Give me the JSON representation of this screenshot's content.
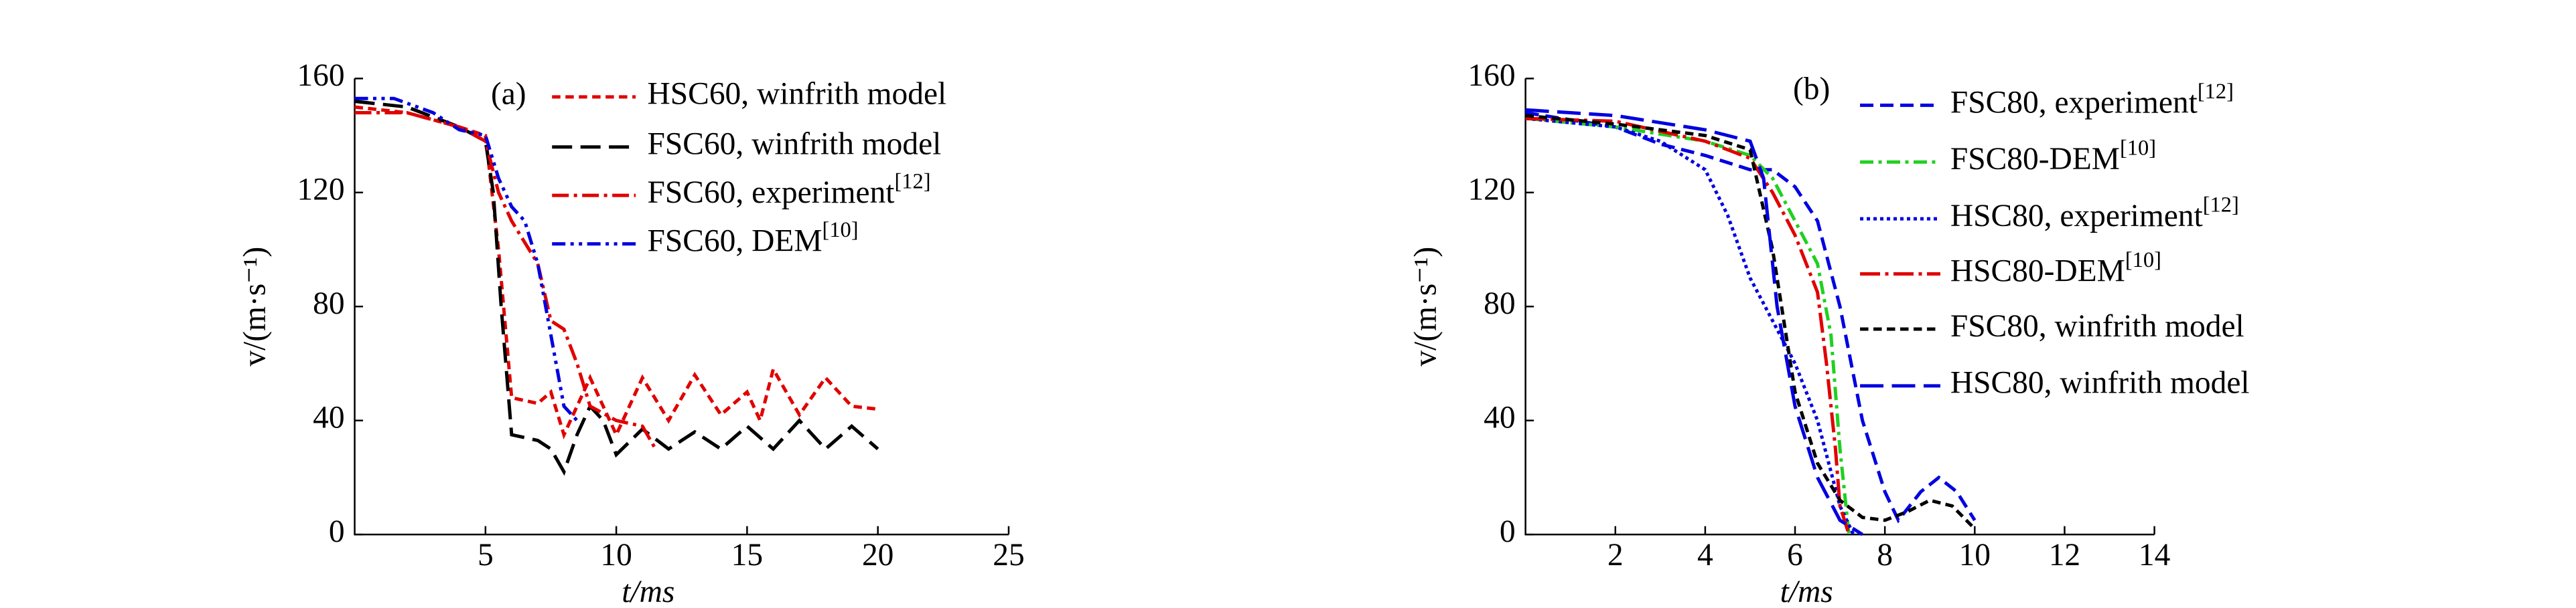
{
  "chart_data": [
    {
      "type": "line",
      "annotation": "(a)",
      "xlabel": "t/ms",
      "ylabel": "v/(m·s⁻¹)",
      "xlim": [
        0,
        25
      ],
      "xticks": [
        5,
        10,
        15,
        20,
        25
      ],
      "ylim": [
        0,
        160
      ],
      "yticks": [
        0,
        40,
        80,
        120,
        160
      ],
      "series": [
        {
          "name": "HSC60, winfrith model",
          "color": "#e00000",
          "dash": "5,3",
          "x": [
            0,
            2,
            4,
            5,
            5.5,
            6,
            7,
            7.5,
            8,
            9,
            10,
            11,
            12,
            13,
            14,
            15,
            15.5,
            16,
            17,
            18,
            19,
            20
          ],
          "values": [
            150,
            148,
            143,
            140,
            100,
            48,
            46,
            50,
            35,
            55,
            35,
            55,
            40,
            56,
            42,
            50,
            40,
            58,
            42,
            55,
            45,
            44
          ]
        },
        {
          "name": "FSC60, winfrith model",
          "color": "#000000",
          "dash": "12,5",
          "x": [
            0,
            2,
            4,
            5,
            5.3,
            5.6,
            6,
            7,
            7.5,
            8,
            8.5,
            9,
            9.5,
            10,
            11,
            12,
            13,
            14,
            15,
            16,
            17,
            18,
            19,
            20
          ],
          "values": [
            152,
            150,
            143,
            138,
            120,
            80,
            35,
            33,
            30,
            22,
            35,
            45,
            40,
            28,
            37,
            30,
            36,
            30,
            38,
            30,
            40,
            30,
            38,
            30
          ]
        },
        {
          "name": "FSC60, experiment[12]",
          "color": "#e00000",
          "dash": "10,3,2,3",
          "x": [
            0,
            2,
            4,
            5,
            5.5,
            6,
            7,
            7.5,
            8,
            8.5,
            9,
            10,
            11,
            11.5
          ],
          "values": [
            148,
            148,
            143,
            138,
            120,
            110,
            95,
            75,
            72,
            60,
            45,
            40,
            38,
            30
          ]
        },
        {
          "name": "FSC60, DEM[10]",
          "color": "#0000e0",
          "dash": "8,3,2,3,2,3",
          "x": [
            0,
            1.5,
            3,
            4,
            5,
            5.5,
            6,
            6.5,
            7,
            7.5,
            8,
            8.5
          ],
          "values": [
            153,
            153,
            148,
            142,
            140,
            125,
            115,
            110,
            95,
            70,
            45,
            40
          ]
        }
      ]
    },
    {
      "type": "line",
      "annotation": "(b)",
      "xlabel": "t/ms",
      "ylabel": "v/(m·s⁻¹)",
      "xlim": [
        0,
        14
      ],
      "xticks": [
        2,
        4,
        6,
        8,
        10,
        12,
        14
      ],
      "ylim": [
        0,
        160
      ],
      "yticks": [
        0,
        40,
        80,
        120,
        160
      ],
      "series": [
        {
          "name": "FSC80, experiment[12]",
          "color": "#0000e0",
          "dash": "8,4",
          "x": [
            0,
            2,
            3,
            4,
            5,
            5.5,
            6,
            6.5,
            7,
            7.5,
            8,
            8.3,
            8.8,
            9.2,
            9.6,
            10
          ],
          "values": [
            148,
            143,
            137,
            133,
            128,
            128,
            122,
            110,
            80,
            40,
            15,
            5,
            15,
            20,
            15,
            5
          ]
        },
        {
          "name": "FSC80-DEM[10]",
          "color": "#20d020",
          "dash": "8,3,2,3",
          "x": [
            0,
            2,
            4,
            5,
            5.5,
            6,
            6.5,
            6.8,
            7,
            7.2
          ],
          "values": [
            146,
            143,
            138,
            133,
            125,
            110,
            95,
            70,
            30,
            0
          ]
        },
        {
          "name": "HSC80, experiment[12]",
          "color": "#0000e0",
          "dash": "2,2",
          "x": [
            0,
            2,
            3,
            4,
            4.5,
            5,
            5.5,
            6,
            6.5,
            7,
            7.3
          ],
          "values": [
            146,
            143,
            138,
            128,
            112,
            90,
            75,
            60,
            40,
            10,
            0
          ]
        },
        {
          "name": "HSC80-DEM[10]",
          "color": "#e00000",
          "dash": "12,3,2,3",
          "x": [
            0,
            2,
            4,
            5,
            5.5,
            6,
            6.5,
            6.7,
            6.9,
            7,
            7.2
          ],
          "values": [
            146,
            145,
            138,
            132,
            120,
            105,
            85,
            60,
            30,
            10,
            0
          ]
        },
        {
          "name": "FSC80, winfrith model",
          "color": "#000000",
          "dash": "5,3",
          "x": [
            0,
            2,
            4,
            5,
            5.5,
            6,
            6.5,
            7,
            7.5,
            8,
            8.5,
            9,
            9.5,
            10
          ],
          "values": [
            147,
            144,
            140,
            135,
            100,
            50,
            25,
            12,
            6,
            5,
            8,
            12,
            10,
            2
          ]
        },
        {
          "name": "HSC80, winfrith model",
          "color": "#0000e0",
          "dash": "14,5",
          "x": [
            0,
            2,
            4,
            5,
            5.3,
            5.6,
            6,
            6.5,
            7,
            7.5
          ],
          "values": [
            149,
            147,
            142,
            138,
            125,
            80,
            45,
            20,
            5,
            0
          ]
        }
      ]
    }
  ]
}
